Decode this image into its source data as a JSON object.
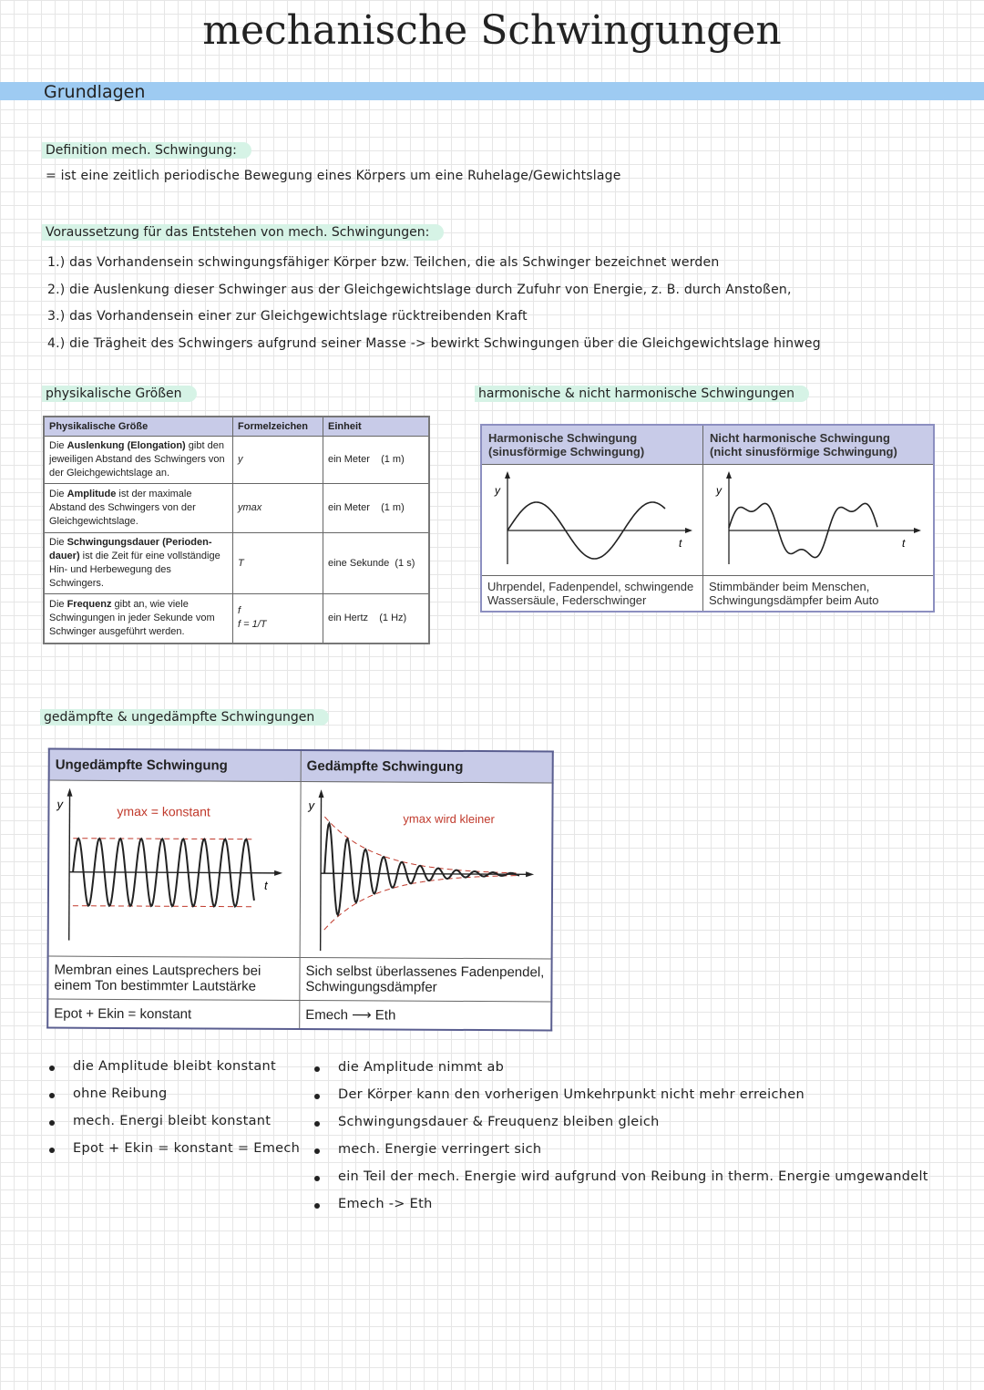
{
  "title": "mechanische Schwingungen",
  "section": "Grundlagen",
  "definition": {
    "heading": "Definition mech. Schwingung:",
    "text": "= ist eine zeitlich periodische Bewegung eines Körpers um eine Ruhelage/Gewichtslage"
  },
  "requirements": {
    "heading": "Voraussetzung für das Entstehen von mech. Schwingungen:",
    "items": [
      "1.) das Vorhandensein schwingungsfähiger Körper bzw. Teilchen, die als Schwinger bezeichnet werden",
      "2.) die Auslenkung dieser Schwinger aus der Gleichgewichtslage durch Zufuhr von Energie, z. B. durch Anstoßen,",
      "3.) das Vorhandensein einer zur Gleichgewichtslage rücktreibenden Kraft",
      "4.) die Trägheit des Schwingers aufgrund seiner Masse -> bewirkt Schwingungen über die Gleichgewichtslage hinweg"
    ]
  },
  "quantities": {
    "heading": "physikalische Größen",
    "headers": [
      "Physikalische Größe",
      "Formelzeichen",
      "Einheit"
    ],
    "rows": [
      {
        "pre": "Die ",
        "bold": "Auslenkung (Elongation)",
        "post": " gibt den jeweiligen Abstand des Schwingers von der Gleichgewichtslage an.",
        "symbol": "y",
        "unit": "ein Meter    (1 m)"
      },
      {
        "pre": "Die ",
        "bold": "Amplitude",
        "post": " ist der maximale Abstand des Schwingers von der Gleichgewichtslage.",
        "symbol": "ymax",
        "unit": "ein Meter    (1 m)"
      },
      {
        "pre": "Die ",
        "bold": "Schwingungsdauer (Perioden­dauer)",
        "post": " ist die Zeit für eine vollständige Hin- und Herbewegung des Schwingers.",
        "symbol": "T",
        "unit": "eine Sekunde  (1 s)"
      },
      {
        "pre": "Die ",
        "bold": "Frequenz",
        "post": " gibt an, wie viele Schwingungen in jeder Sekunde vom Schwinger ausgeführt werden.",
        "symbol": "f",
        "symbol2": "f = 1/T",
        "unit": "ein Hertz    (1 Hz)"
      }
    ]
  },
  "harmonic": {
    "heading": "harmonische & nicht harmonische Schwingungen",
    "col1": {
      "title": "Harmonische Schwingung",
      "subtitle": "(sinusförmige Schwingung)",
      "examples": "Uhrpendel, Fadenpendel, schwingende Wassersäule, Federschwinger"
    },
    "col2": {
      "title": "Nicht harmonische Schwingung",
      "subtitle": "(nicht sinusförmige Schwingung)",
      "examples": "Stimmbänder beim Menschen, Schwingungsdämpfer beim Auto"
    },
    "axis_y": "y",
    "axis_t": "t"
  },
  "damping": {
    "heading": "gedämpfte & ungedämpfte Schwingungen",
    "col1": {
      "title": "Ungedämpfte Schwingung",
      "label": "ymax = konstant",
      "examples": "Membran eines Lautsprechers bei einem Ton bestimmter Lautstärke",
      "formula": "Epot + Ekin = konstant"
    },
    "col2": {
      "title": "Gedämpfte Schwingung",
      "label": "ymax wird kleiner",
      "examples": "Sich selbst überlassenes Fadenpendel, Schwingungsdämpfer",
      "formula": "Emech ⟶ Eth"
    },
    "axis_y": "y",
    "axis_t": "t",
    "left_bullets": [
      "die Amplitude bleibt konstant",
      "ohne Reibung",
      "mech. Energi bleibt konstant",
      "Epot + Ekin = konstant = Emech"
    ],
    "right_bullets": [
      "die Amplitude nimmt ab",
      "Der Körper kann den vorherigen Umkehrpunkt nicht mehr erreichen",
      "Schwingungsdauer & Freuquenz bleiben gleich",
      "mech. Energie verringert sich",
      "ein Teil der mech. Energie wird aufgrund von Reibung in therm. Energie umgewandelt",
      "Emech -> Eth"
    ]
  }
}
